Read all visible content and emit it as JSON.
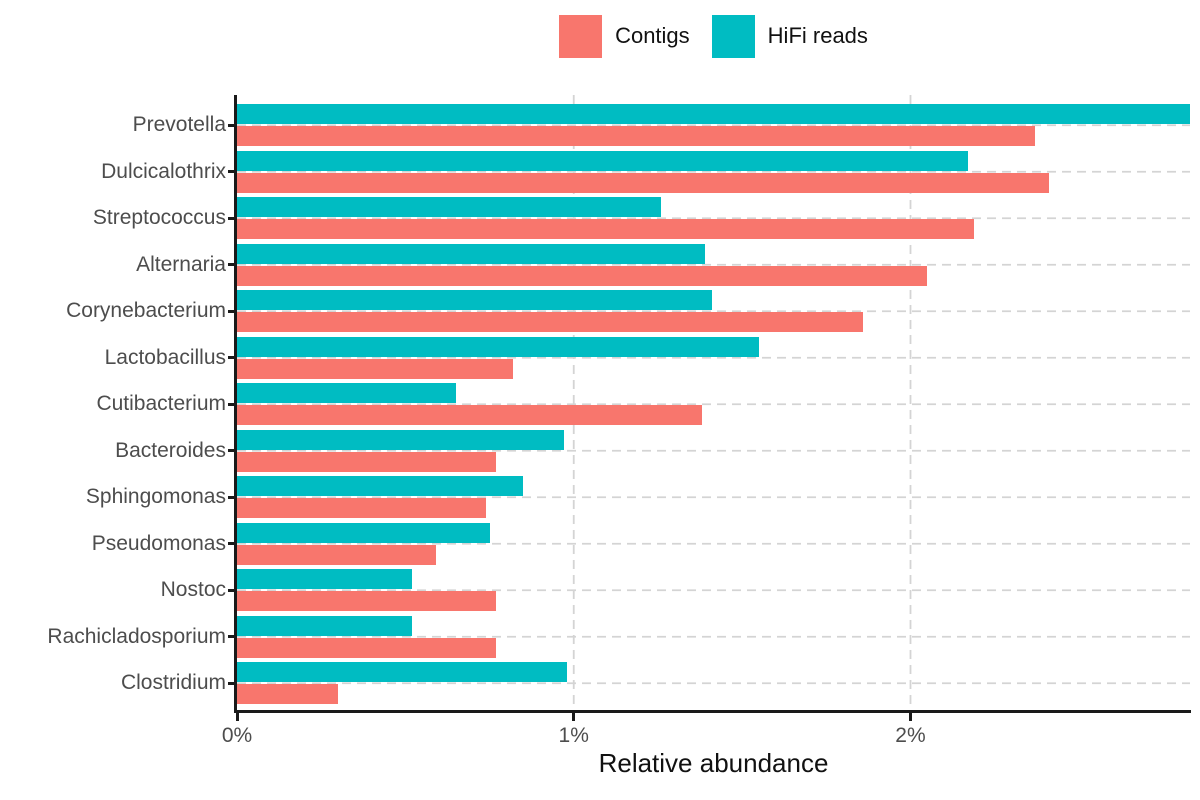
{
  "chart_data": {
    "type": "bar",
    "orientation": "horizontal",
    "title": "",
    "xlabel": "Relative abundance",
    "ylabel": "",
    "xlim": [
      0,
      2.83
    ],
    "x_ticks": [
      {
        "label": "0%",
        "value": 0
      },
      {
        "label": "1%",
        "value": 1
      },
      {
        "label": "2%",
        "value": 2
      }
    ],
    "grid": {
      "style": "dashed",
      "color": "#d4d4d4",
      "vertical_at_values": [
        1,
        2
      ],
      "horizontal": "category-centers"
    },
    "legend_position": "top-center",
    "legend": [
      {
        "label": "Contigs",
        "color": "#F8766D"
      },
      {
        "label": "HiFi reads",
        "color": "#00BCC2"
      }
    ],
    "bar_order_in_group_top_to_bottom": [
      "HiFi reads",
      "Contigs"
    ],
    "categories": [
      "Prevotella",
      "Dulcicalothrix",
      "Streptococcus",
      "Alternaria",
      "Corynebacterium",
      "Lactobacillus",
      "Cutibacterium",
      "Bacteroides",
      "Sphingomonas",
      "Pseudomonas",
      "Nostoc",
      "Rachicladosporium",
      "Clostridium"
    ],
    "series": [
      {
        "name": "Contigs",
        "color": "#F8766D",
        "values_pct": [
          2.37,
          2.41,
          2.19,
          2.05,
          1.86,
          0.82,
          1.38,
          0.77,
          0.74,
          0.59,
          0.77,
          0.77,
          0.3
        ]
      },
      {
        "name": "HiFi reads",
        "color": "#00BCC2",
        "values_pct": [
          2.83,
          2.17,
          1.26,
          1.39,
          1.41,
          1.55,
          0.65,
          0.97,
          0.85,
          0.75,
          0.52,
          0.52,
          0.98
        ]
      }
    ],
    "axis_color": "#1a1a1a",
    "tick_label_color": "#4d4d4d"
  }
}
